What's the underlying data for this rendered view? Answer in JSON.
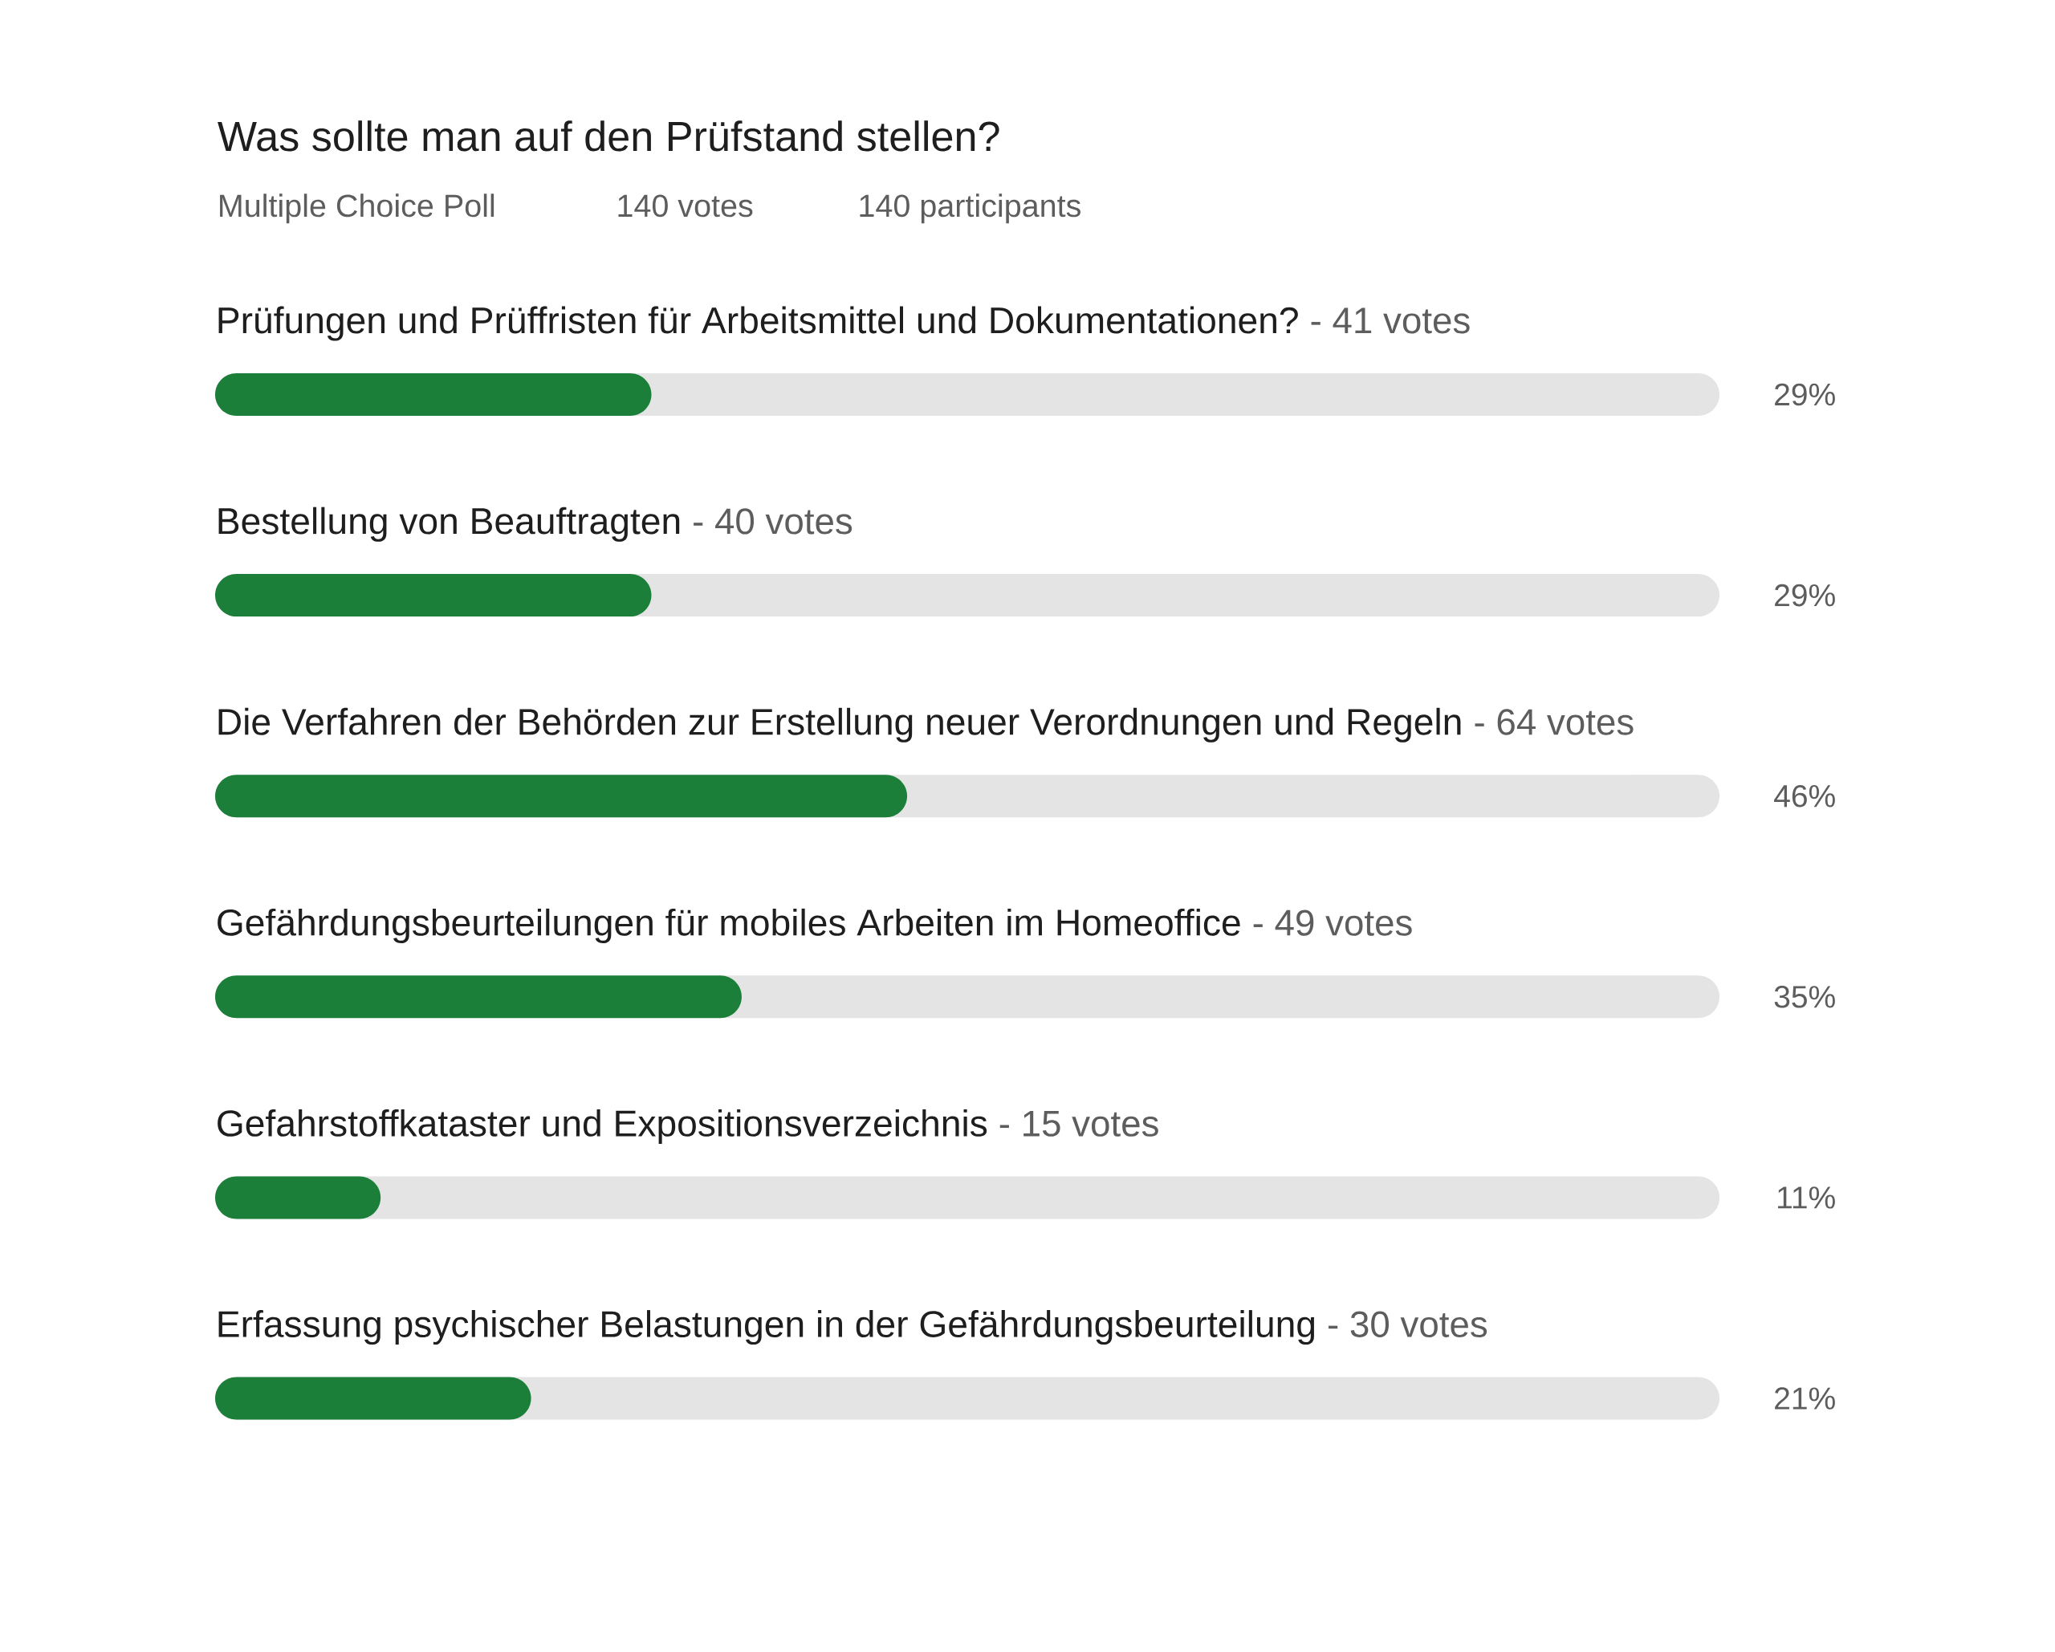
{
  "chart_data": {
    "type": "bar",
    "orientation": "horizontal",
    "title": "Was sollte man auf den Prüfstand stellen?",
    "subtitle": "Multiple Choice Poll",
    "categories": [
      "Prüfungen und Prüffristen für Arbeitsmittel und Dokumentationen?",
      "Bestellung von Beauftragten",
      "Die Verfahren der Behörden zur Erstellung neuer Verordnungen und Regeln",
      "Gefährdungsbeurteilungen für mobiles Arbeiten im Homeoffice",
      "Gefahrstoffkataster und Expositionsverzeichnis",
      "Erfassung psychischer Belastungen in der Gefährdungsbeurteilung"
    ],
    "values": [
      29,
      29,
      46,
      35,
      11,
      21
    ],
    "value_labels": [
      "29%",
      "29%",
      "46%",
      "35%",
      "11%",
      "21%"
    ],
    "color": "#1b7f3a",
    "xlim": [
      0,
      100
    ],
    "annotations": [
      "140 votes",
      "140 participants",
      "- 41 votes",
      "- 40 votes",
      "- 64 votes",
      "- 49 votes",
      "- 15 votes",
      "- 30 votes"
    ]
  }
}
